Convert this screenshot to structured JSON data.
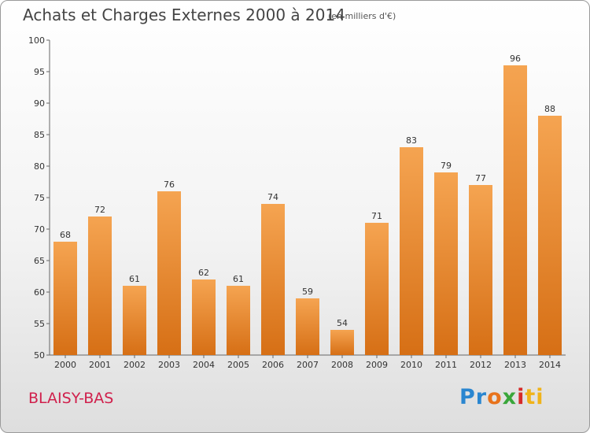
{
  "title": "Achats et Charges Externes 2000 à 2014",
  "subtitle": "(en milliers d'€)",
  "commune": "BLAISY-BAS",
  "logo": [
    "Pr",
    "o",
    "x",
    "i",
    "ti"
  ],
  "colors": {
    "bar_light": "#f5a451",
    "bar_dark": "#d66f15",
    "commune": "#d0204c"
  },
  "chart_data": {
    "type": "bar",
    "title": "Achats et Charges Externes 2000 à 2014",
    "subtitle": "(en milliers d'€)",
    "categories": [
      "2000",
      "2001",
      "2002",
      "2003",
      "2004",
      "2005",
      "2006",
      "2007",
      "2008",
      "2009",
      "2010",
      "2011",
      "2012",
      "2013",
      "2014"
    ],
    "values": [
      68,
      72,
      61,
      76,
      62,
      61,
      74,
      59,
      54,
      71,
      83,
      79,
      77,
      96,
      88
    ],
    "ylim": [
      50,
      100
    ],
    "yticks": [
      50,
      55,
      60,
      65,
      70,
      75,
      80,
      85,
      90,
      95,
      100
    ],
    "grid": false,
    "legend": "none"
  }
}
